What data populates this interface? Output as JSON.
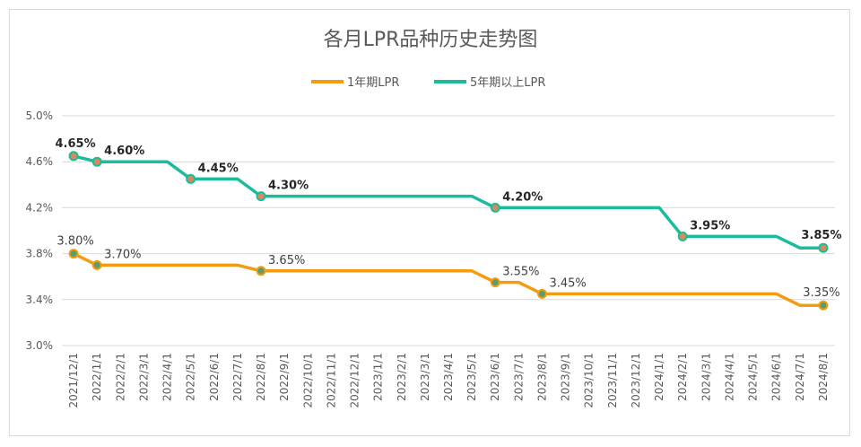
{
  "chart_data": {
    "type": "line",
    "title": "各月LPR品种历史走势图",
    "ylim": [
      3.0,
      5.0
    ],
    "yticks": [
      "3.0%",
      "3.4%",
      "3.8%",
      "4.2%",
      "4.6%",
      "5.0%"
    ],
    "grid": true,
    "legend_position": "top",
    "categories": [
      "2021/12/1",
      "2022/1/1",
      "2022/2/1",
      "2022/3/1",
      "2022/4/1",
      "2022/5/1",
      "2022/6/1",
      "2022/7/1",
      "2022/8/1",
      "2022/9/1",
      "2022/10/1",
      "2022/11/1",
      "2022/12/1",
      "2023/1/1",
      "2023/2/1",
      "2023/3/1",
      "2023/4/1",
      "2023/5/1",
      "2023/6/1",
      "2023/7/1",
      "2023/8/1",
      "2023/9/1",
      "2023/10/1",
      "2023/11/1",
      "2023/12/1",
      "2024/1/1",
      "2024/2/1",
      "2024/3/1",
      "2024/4/1",
      "2024/5/1",
      "2024/6/1",
      "2024/7/1",
      "2024/8/1"
    ],
    "series": [
      {
        "name": "1年期LPR",
        "color": "#f39c12",
        "values": [
          3.8,
          3.7,
          3.7,
          3.7,
          3.7,
          3.7,
          3.7,
          3.7,
          3.65,
          3.65,
          3.65,
          3.65,
          3.65,
          3.65,
          3.65,
          3.65,
          3.65,
          3.65,
          3.55,
          3.55,
          3.45,
          3.45,
          3.45,
          3.45,
          3.45,
          3.45,
          3.45,
          3.45,
          3.45,
          3.45,
          3.45,
          3.35,
          3.35
        ],
        "markers": [
          0,
          1,
          8,
          18,
          20,
          32
        ],
        "labels": [
          {
            "index": 0,
            "text": "3.80%"
          },
          {
            "index": 1,
            "text": "3.70%"
          },
          {
            "index": 8,
            "text": "3.65%"
          },
          {
            "index": 18,
            "text": "3.55%"
          },
          {
            "index": 20,
            "text": "3.45%"
          },
          {
            "index": 32,
            "text": "3.35%"
          }
        ]
      },
      {
        "name": "5年期以上LPR",
        "color": "#1abc9c",
        "values": [
          4.65,
          4.6,
          4.6,
          4.6,
          4.6,
          4.45,
          4.45,
          4.45,
          4.3,
          4.3,
          4.3,
          4.3,
          4.3,
          4.3,
          4.3,
          4.3,
          4.3,
          4.3,
          4.2,
          4.2,
          4.2,
          4.2,
          4.2,
          4.2,
          4.2,
          4.2,
          3.95,
          3.95,
          3.95,
          3.95,
          3.95,
          3.85,
          3.85
        ],
        "markers": [
          0,
          1,
          5,
          8,
          18,
          26,
          32
        ],
        "labels": [
          {
            "index": 0,
            "text": "4.65%"
          },
          {
            "index": 1,
            "text": "4.60%"
          },
          {
            "index": 5,
            "text": "4.45%"
          },
          {
            "index": 8,
            "text": "4.30%"
          },
          {
            "index": 18,
            "text": "4.20%"
          },
          {
            "index": 26,
            "text": "3.95%"
          },
          {
            "index": 32,
            "text": "3.85%"
          }
        ]
      }
    ]
  }
}
